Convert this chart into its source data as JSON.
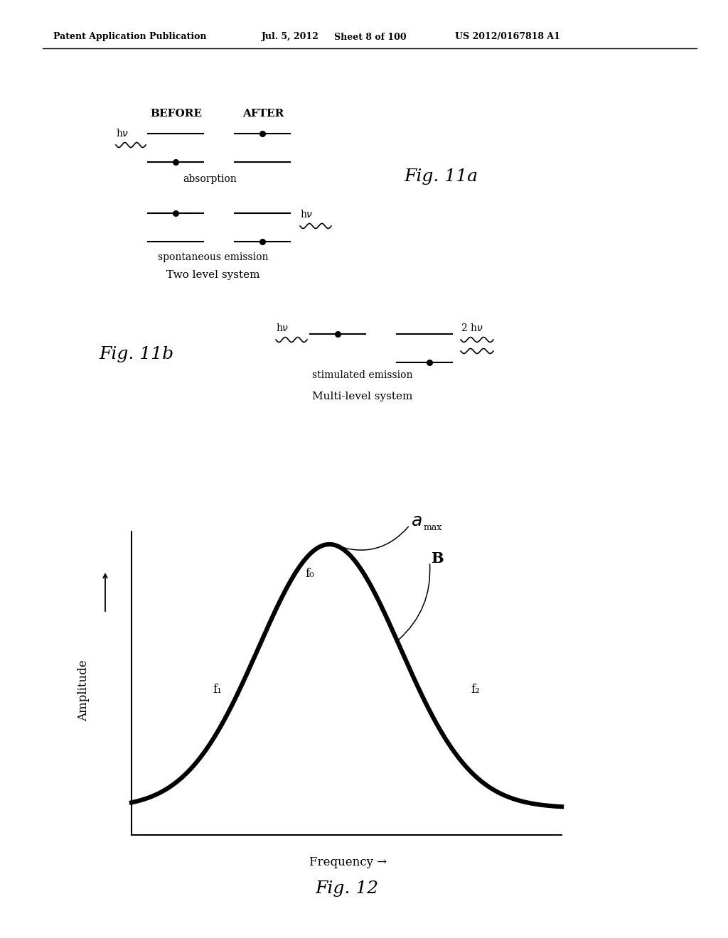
{
  "bg_color": "#ffffff",
  "header_text": "Patent Application Publication",
  "header_date": "Jul. 5, 2012",
  "header_sheet": "Sheet 8 of 100",
  "header_patent": "US 2012/0167818 A1",
  "fig11a_label": "Fig. 11a",
  "fig11b_label": "Fig. 11b",
  "fig12_label": "Fig. 12",
  "before_label": "BEFORE",
  "after_label": "AFTER",
  "absorption_label": "absorption",
  "spontaneous_label": "spontaneous emission",
  "two_level_label": "Two level system",
  "stimulated_label": "stimulated emission",
  "multi_level_label": "Multi-level system",
  "amplitude_label": "Amplitude",
  "frequency_label": "Frequency →",
  "f0_label": "f₀",
  "f1_label": "f₁",
  "f2_label": "f₂"
}
